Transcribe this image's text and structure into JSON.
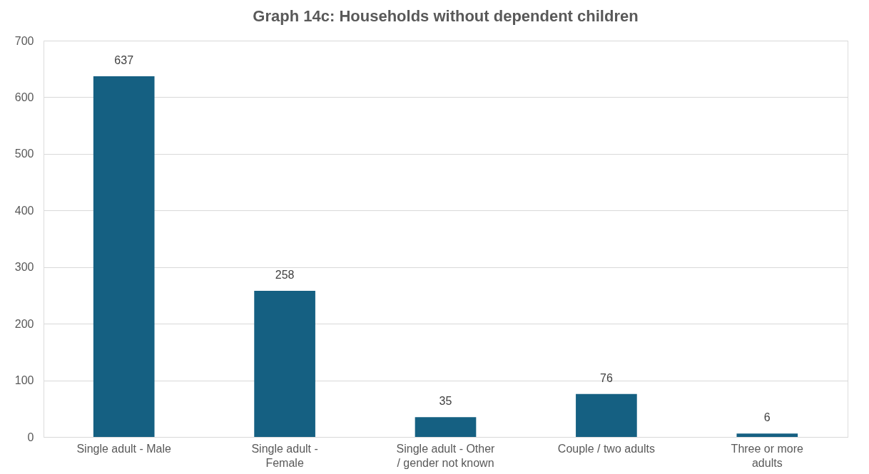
{
  "chart_data": {
    "type": "bar",
    "title": "Graph 14c: Households without dependent children",
    "categories": [
      "Single adult - Male",
      "Single adult - Female",
      "Single adult - Other / gender not known",
      "Couple / two adults",
      "Three or more adults"
    ],
    "values": [
      637,
      258,
      35,
      76,
      6
    ],
    "color": "#156082",
    "ylim": [
      0,
      700
    ],
    "yticks": [
      0,
      100,
      200,
      300,
      400,
      500,
      600,
      700
    ],
    "grid": "y",
    "data_labels": true
  }
}
